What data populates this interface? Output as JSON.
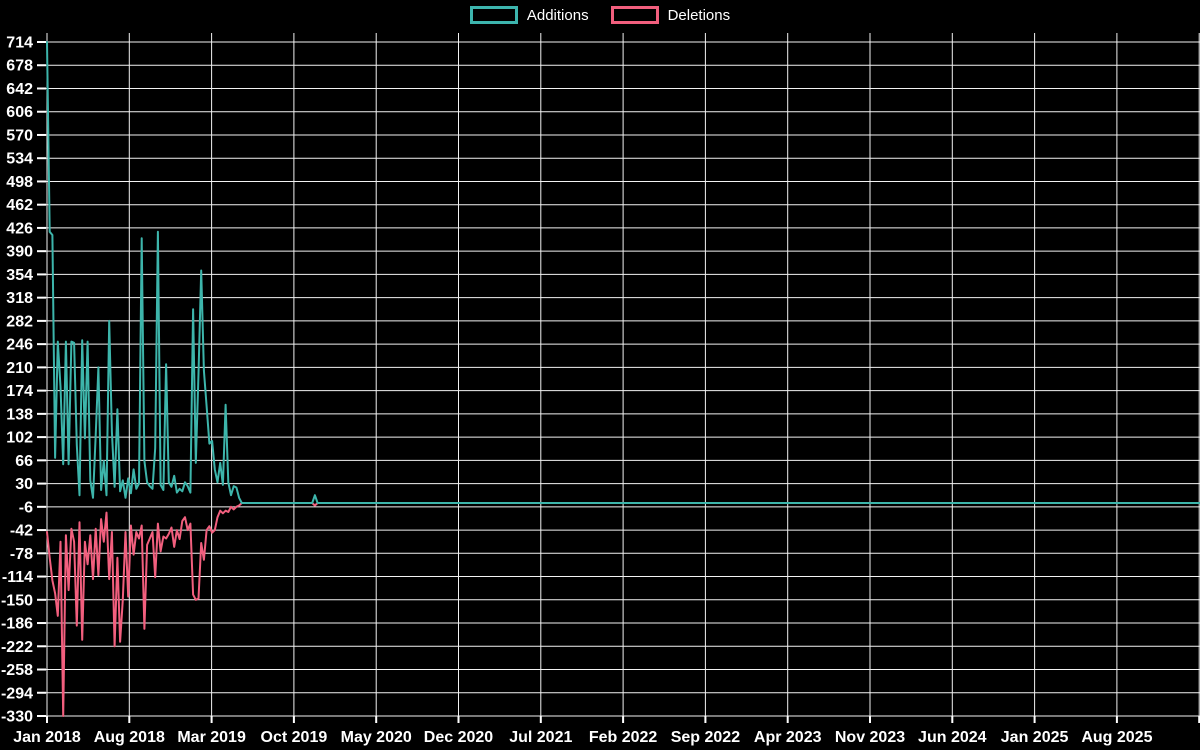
{
  "legend": {
    "items": [
      {
        "key": "additions",
        "label": "Additions",
        "color": "#3db5ae"
      },
      {
        "key": "deletions",
        "label": "Deletions",
        "color": "#f25f7e"
      }
    ]
  },
  "colors": {
    "background": "#000000",
    "grid": "#f2f2f2",
    "axis_text": "#ffffff",
    "additions": "#3db5ae",
    "deletions": "#f25f7e"
  },
  "chart_data": {
    "type": "line",
    "title": "",
    "xlabel": "",
    "ylabel": "",
    "grid": "on",
    "legend_position": "top-center",
    "x_tick_labels": [
      "Jan 2018",
      "Aug 2018",
      "Mar 2019",
      "Oct 2019",
      "May 2020",
      "Dec 2020",
      "Jul 2021",
      "Feb 2022",
      "Sep 2022",
      "Apr 2023",
      "Nov 2023",
      "Jun 2024",
      "Jan 2025",
      "Aug 2025"
    ],
    "x_tick_step_months": 7,
    "y_ticks": [
      714,
      678,
      642,
      606,
      570,
      534,
      498,
      462,
      426,
      390,
      354,
      318,
      282,
      246,
      210,
      174,
      138,
      102,
      66,
      30,
      -6,
      -42,
      -78,
      -114,
      -150,
      -186,
      -222,
      -258,
      -294,
      -330
    ],
    "ylim": [
      -330,
      714
    ],
    "total_weeks": 427,
    "sampling": "weekly; weeks not listed in a series are 0",
    "series": [
      {
        "name": "Additions",
        "color": "#3db5ab",
        "points_weekly": [
          [
            0,
            714
          ],
          [
            1,
            420
          ],
          [
            2,
            415
          ],
          [
            3,
            70
          ],
          [
            4,
            250
          ],
          [
            5,
            180
          ],
          [
            6,
            60
          ],
          [
            7,
            250
          ],
          [
            8,
            60
          ],
          [
            9,
            250
          ],
          [
            10,
            248
          ],
          [
            11,
            90
          ],
          [
            12,
            12
          ],
          [
            13,
            252
          ],
          [
            14,
            100
          ],
          [
            15,
            250
          ],
          [
            16,
            35
          ],
          [
            17,
            8
          ],
          [
            18,
            105
          ],
          [
            19,
            210
          ],
          [
            20,
            20
          ],
          [
            21,
            65
          ],
          [
            22,
            12
          ],
          [
            23,
            282
          ],
          [
            24,
            110
          ],
          [
            25,
            25
          ],
          [
            26,
            145
          ],
          [
            27,
            18
          ],
          [
            28,
            35
          ],
          [
            29,
            8
          ],
          [
            30,
            38
          ],
          [
            31,
            15
          ],
          [
            32,
            52
          ],
          [
            33,
            22
          ],
          [
            34,
            30
          ],
          [
            35,
            410
          ],
          [
            36,
            65
          ],
          [
            37,
            32
          ],
          [
            38,
            26
          ],
          [
            39,
            22
          ],
          [
            40,
            85
          ],
          [
            41,
            420
          ],
          [
            42,
            28
          ],
          [
            43,
            20
          ],
          [
            44,
            215
          ],
          [
            45,
            32
          ],
          [
            46,
            25
          ],
          [
            47,
            42
          ],
          [
            48,
            16
          ],
          [
            49,
            22
          ],
          [
            50,
            18
          ],
          [
            51,
            32
          ],
          [
            52,
            26
          ],
          [
            53,
            16
          ],
          [
            54,
            300
          ],
          [
            55,
            62
          ],
          [
            56,
            200
          ],
          [
            57,
            360
          ],
          [
            58,
            205
          ],
          [
            59,
            150
          ],
          [
            60,
            92
          ],
          [
            61,
            96
          ],
          [
            62,
            52
          ],
          [
            63,
            32
          ],
          [
            64,
            62
          ],
          [
            65,
            28
          ],
          [
            66,
            152
          ],
          [
            67,
            32
          ],
          [
            68,
            12
          ],
          [
            69,
            26
          ],
          [
            70,
            24
          ],
          [
            71,
            8
          ],
          [
            99,
            12
          ]
        ]
      },
      {
        "name": "Deletions",
        "color": "#f25f7e",
        "points_weekly": [
          [
            0,
            -45
          ],
          [
            1,
            -85
          ],
          [
            2,
            -120
          ],
          [
            3,
            -140
          ],
          [
            4,
            -175
          ],
          [
            5,
            -60
          ],
          [
            6,
            -330
          ],
          [
            7,
            -50
          ],
          [
            8,
            -135
          ],
          [
            9,
            -40
          ],
          [
            10,
            -60
          ],
          [
            11,
            -190
          ],
          [
            12,
            -30
          ],
          [
            13,
            -212
          ],
          [
            14,
            -60
          ],
          [
            15,
            -95
          ],
          [
            16,
            -50
          ],
          [
            17,
            -118
          ],
          [
            18,
            -40
          ],
          [
            19,
            -112
          ],
          [
            20,
            -25
          ],
          [
            21,
            -60
          ],
          [
            22,
            -15
          ],
          [
            23,
            -118
          ],
          [
            24,
            -45
          ],
          [
            25,
            -222
          ],
          [
            26,
            -85
          ],
          [
            27,
            -215
          ],
          [
            28,
            -150
          ],
          [
            29,
            -45
          ],
          [
            30,
            -145
          ],
          [
            31,
            -35
          ],
          [
            32,
            -80
          ],
          [
            33,
            -45
          ],
          [
            34,
            -55
          ],
          [
            35,
            -35
          ],
          [
            36,
            -195
          ],
          [
            37,
            -65
          ],
          [
            38,
            -55
          ],
          [
            39,
            -45
          ],
          [
            40,
            -115
          ],
          [
            41,
            -32
          ],
          [
            42,
            -75
          ],
          [
            43,
            -52
          ],
          [
            44,
            -55
          ],
          [
            45,
            -48
          ],
          [
            46,
            -38
          ],
          [
            47,
            -68
          ],
          [
            48,
            -42
          ],
          [
            49,
            -56
          ],
          [
            50,
            -28
          ],
          [
            51,
            -22
          ],
          [
            52,
            -42
          ],
          [
            53,
            -32
          ],
          [
            54,
            -142
          ],
          [
            55,
            -150
          ],
          [
            56,
            -148
          ],
          [
            57,
            -62
          ],
          [
            58,
            -88
          ],
          [
            59,
            -42
          ],
          [
            60,
            -36
          ],
          [
            61,
            -46
          ],
          [
            62,
            -42
          ],
          [
            63,
            -22
          ],
          [
            64,
            -12
          ],
          [
            65,
            -16
          ],
          [
            66,
            -12
          ],
          [
            67,
            -14
          ],
          [
            68,
            -6
          ],
          [
            69,
            -10
          ],
          [
            70,
            -6
          ],
          [
            71,
            -4
          ],
          [
            99,
            -4
          ]
        ]
      }
    ]
  }
}
